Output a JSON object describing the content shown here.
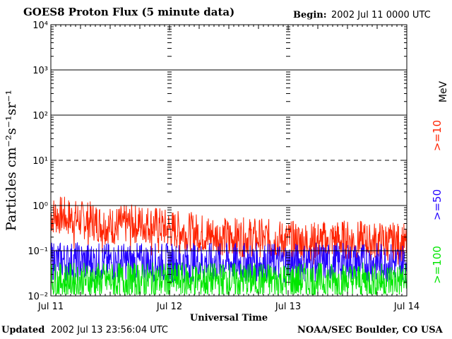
{
  "header": {
    "title": "GOES8 Proton Flux (5 minute data)",
    "begin_label": "Begin:",
    "begin_value": "2002 Jul 11 0000 UTC"
  },
  "footer": {
    "updated_label": "Updated",
    "updated_value": "2002 Jul 13 23:56:04 UTC",
    "credit": "NOAA/SEC Boulder, CO USA"
  },
  "legend": {
    "unit": "MeV",
    "items": [
      {
        "label": ">=10",
        "color": "#ff2200"
      },
      {
        "label": ">=50",
        "color": "#2200ff"
      },
      {
        "label": ">=100",
        "color": "#00e600"
      }
    ]
  },
  "chart_data": {
    "type": "line",
    "title": "GOES8 Proton Flux (5 minute data)",
    "xlabel": "Universal Time",
    "ylabel": "Particles cm⁻²s⁻¹sr⁻¹",
    "yscale": "log",
    "ylim": [
      0.01,
      10000
    ],
    "y_ticks": [
      "10⁻²",
      "10⁻¹",
      "10⁰",
      "10¹",
      "10²",
      "10³",
      "10⁴"
    ],
    "x_ticks": [
      "Jul 11",
      "Jul 12",
      "Jul 13",
      "Jul 14"
    ],
    "xlim_days": [
      0,
      3
    ],
    "grid": {
      "solid_at": [
        0.1,
        1,
        100,
        1000
      ],
      "dashed_at": [
        10
      ]
    },
    "series": [
      {
        "name": ">=10",
        "color": "#ff2200",
        "x": [
          0,
          0.1,
          0.2,
          0.35,
          0.5,
          0.6,
          0.8,
          1.0,
          1.1,
          1.25,
          1.5,
          1.7,
          2.0,
          2.2,
          2.4,
          2.6,
          2.8,
          3.0
        ],
        "y": [
          0.6,
          0.6,
          0.5,
          0.45,
          0.35,
          0.38,
          0.4,
          0.3,
          0.28,
          0.25,
          0.2,
          0.2,
          0.17,
          0.16,
          0.18,
          0.17,
          0.16,
          0.15
        ]
      },
      {
        "name": ">=50",
        "color": "#2200ff",
        "x": [
          0,
          0.5,
          1.0,
          1.5,
          2.0,
          2.5,
          3.0
        ],
        "y": [
          0.06,
          0.055,
          0.055,
          0.055,
          0.055,
          0.055,
          0.055
        ]
      },
      {
        "name": ">=100",
        "color": "#00e600",
        "x": [
          0,
          0.5,
          1.0,
          1.5,
          2.0,
          2.5,
          3.0
        ],
        "y": [
          0.022,
          0.022,
          0.022,
          0.022,
          0.022,
          0.022,
          0.022
        ]
      }
    ]
  }
}
